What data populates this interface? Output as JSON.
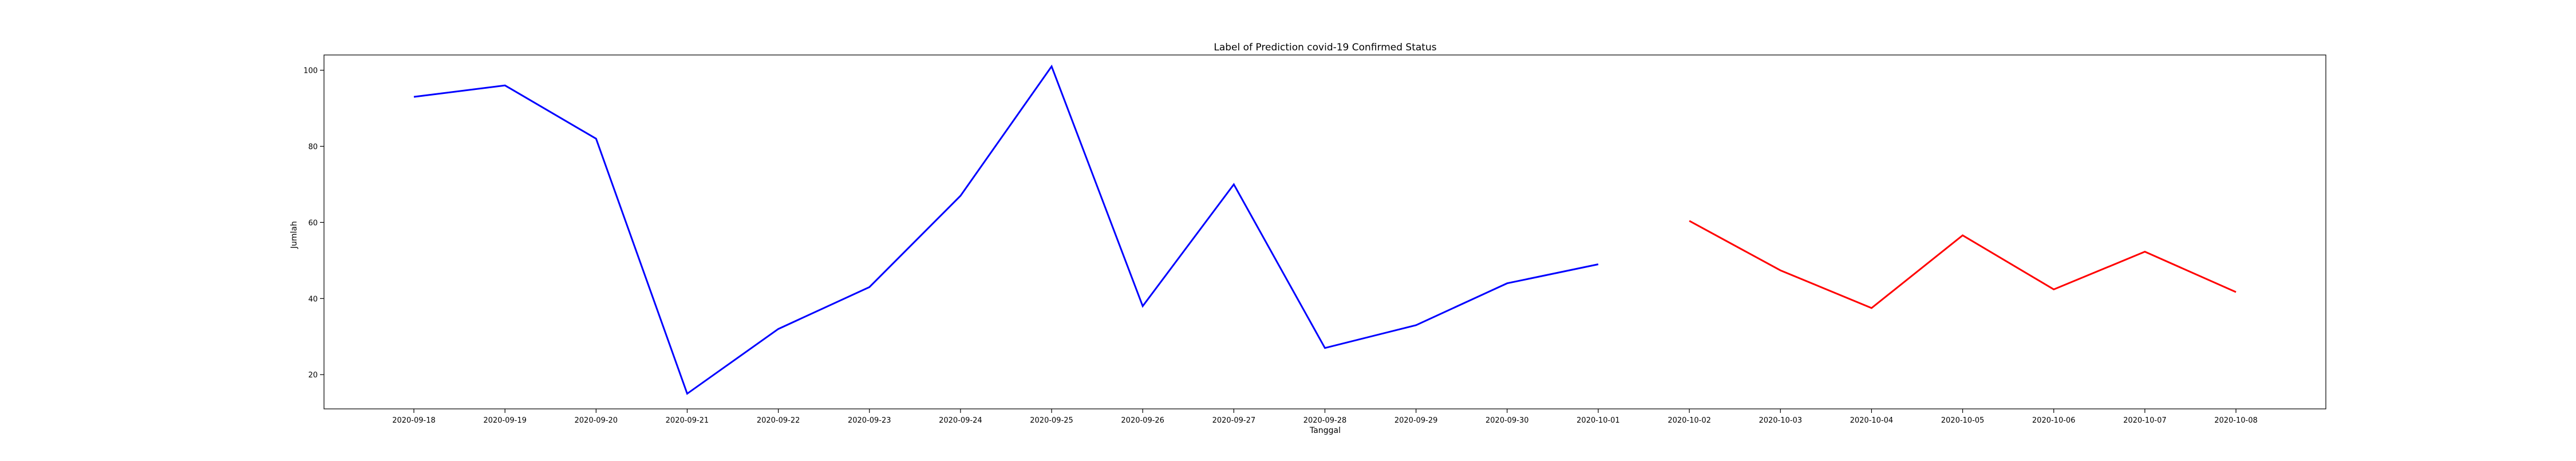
{
  "chart_data": {
    "type": "line",
    "title": "Label of Prediction covid-19 Confirmed Status",
    "xlabel": "Tanggal",
    "ylabel": "Jumlah",
    "ylim": [
      11,
      104
    ],
    "yticks": [
      20,
      40,
      60,
      80,
      100
    ],
    "grid": false,
    "categories": [
      "2020-09-18",
      "2020-09-19",
      "2020-09-20",
      "2020-09-21",
      "2020-09-22",
      "2020-09-23",
      "2020-09-24",
      "2020-09-25",
      "2020-09-26",
      "2020-09-27",
      "2020-09-28",
      "2020-09-29",
      "2020-09-30",
      "2020-10-01",
      "2020-10-02",
      "2020-10-03",
      "2020-10-04",
      "2020-10-05",
      "2020-10-06",
      "2020-10-07",
      "2020-10-08"
    ],
    "series": [
      {
        "color": "#0000ff",
        "x": [
          "2020-09-18",
          "2020-09-19",
          "2020-09-20",
          "2020-09-21",
          "2020-09-22",
          "2020-09-23",
          "2020-09-24",
          "2020-09-25",
          "2020-09-26",
          "2020-09-27",
          "2020-09-28",
          "2020-09-29",
          "2020-09-30",
          "2020-10-01"
        ],
        "values": [
          93,
          96,
          82,
          15,
          32,
          43,
          67,
          101,
          38,
          70,
          27,
          33,
          44,
          49
        ]
      },
      {
        "color": "#ff0000",
        "x": [
          "2020-10-02",
          "2020-10-03",
          "2020-10-04",
          "2020-10-05",
          "2020-10-06",
          "2020-10-07",
          "2020-10-08"
        ],
        "values": [
          60.4,
          47.4,
          37.5,
          56.6,
          42.4,
          52.3,
          41.7
        ]
      }
    ]
  }
}
